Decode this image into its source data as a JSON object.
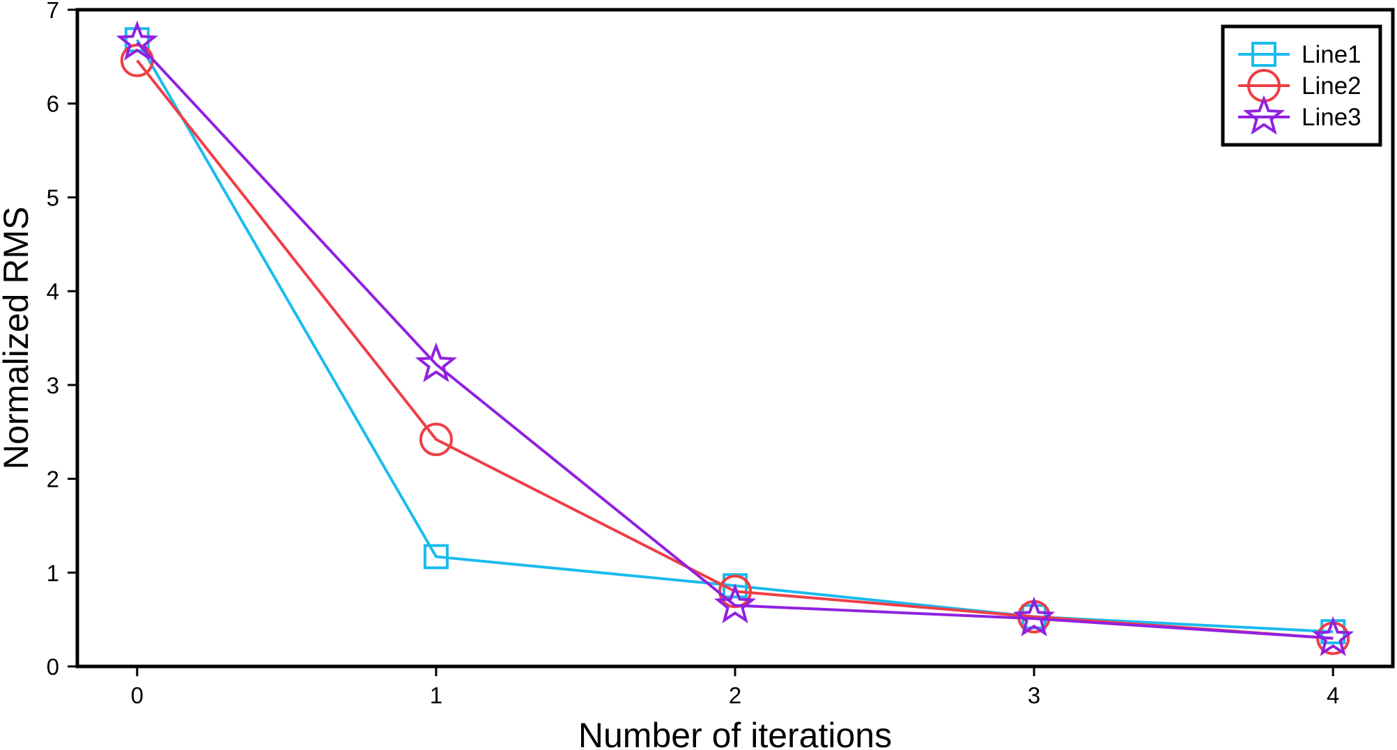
{
  "chart_data": {
    "type": "line",
    "title": "",
    "xlabel": "Number of iterations",
    "ylabel": "Normalized RMS",
    "x": [
      0,
      1,
      2,
      3,
      4
    ],
    "xlim": [
      -0.2,
      4.2
    ],
    "ylim": [
      0,
      7
    ],
    "xticks": [
      "0",
      "1",
      "2",
      "3",
      "4"
    ],
    "yticks": [
      "0",
      "1",
      "2",
      "3",
      "4",
      "5",
      "6",
      "7"
    ],
    "grid": false,
    "legend_position": "top-right",
    "series": [
      {
        "name": "Line1",
        "marker": "square",
        "color": "#1ABBEF",
        "values": [
          6.68,
          1.17,
          0.86,
          0.53,
          0.37
        ]
      },
      {
        "name": "Line2",
        "marker": "circle",
        "color": "#EF3E45",
        "values": [
          6.46,
          2.42,
          0.8,
          0.53,
          0.3
        ]
      },
      {
        "name": "Line3",
        "marker": "star",
        "color": "#9021E0",
        "values": [
          6.65,
          3.22,
          0.65,
          0.51,
          0.3
        ]
      }
    ]
  }
}
